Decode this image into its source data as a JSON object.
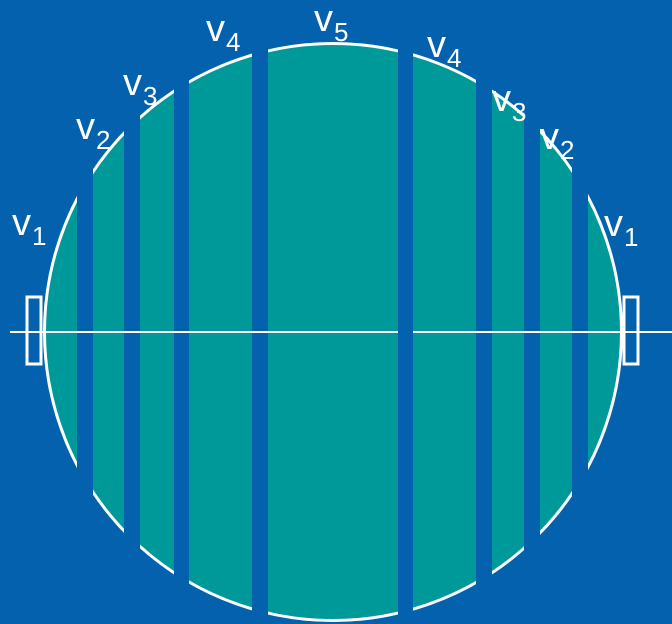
{
  "colors": {
    "background": "#0361ad",
    "fill": "#009999",
    "outline": "#ffffff"
  },
  "labels": [
    {
      "id": "v1-left",
      "base": "v",
      "sub": "1"
    },
    {
      "id": "v2-left",
      "base": "v",
      "sub": "2"
    },
    {
      "id": "v3-left",
      "base": "v",
      "sub": "3"
    },
    {
      "id": "v4-left",
      "base": "v",
      "sub": "4"
    },
    {
      "id": "v5-center",
      "base": "v",
      "sub": "5"
    },
    {
      "id": "v4-right",
      "base": "v",
      "sub": "4"
    },
    {
      "id": "v3-right",
      "base": "v",
      "sub": "3"
    },
    {
      "id": "v2-right",
      "base": "v",
      "sub": "2"
    },
    {
      "id": "v1-right",
      "base": "v",
      "sub": "1"
    }
  ]
}
